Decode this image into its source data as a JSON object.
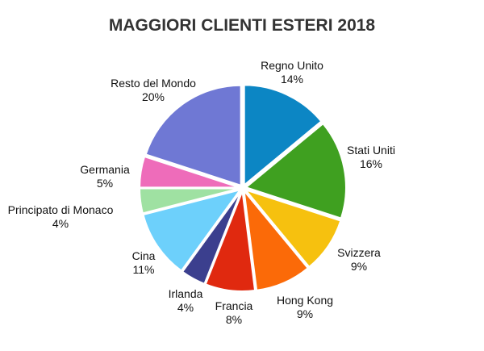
{
  "chart_data": {
    "type": "pie",
    "title": "MAGGIORI CLIENTI ESTERI 2018",
    "slices": [
      {
        "label": "Regno Unito",
        "pct_text": "14%",
        "value": 14,
        "color": "#0c86c4"
      },
      {
        "label": "Stati Uniti",
        "pct_text": "16%",
        "value": 16,
        "color": "#3fa020"
      },
      {
        "label": "Svizzera",
        "pct_text": "9%",
        "value": 9,
        "color": "#f6c10f"
      },
      {
        "label": "Hong Kong",
        "pct_text": "9%",
        "value": 9,
        "color": "#fb6a08"
      },
      {
        "label": "Francia",
        "pct_text": "8%",
        "value": 8,
        "color": "#e0290f"
      },
      {
        "label": "Irlanda",
        "pct_text": "4%",
        "value": 4,
        "color": "#3b3f8e"
      },
      {
        "label": "Cina",
        "pct_text": "11%",
        "value": 11,
        "color": "#6dd0fb"
      },
      {
        "label": "Principato di Monaco",
        "pct_text": "4%",
        "value": 4,
        "color": "#9fe1a2"
      },
      {
        "label": "Germania",
        "pct_text": "5%",
        "value": 5,
        "color": "#ee6cba"
      },
      {
        "label": "Resto del Mondo",
        "pct_text": "20%",
        "value": 20,
        "color": "#6f78d4"
      }
    ]
  }
}
